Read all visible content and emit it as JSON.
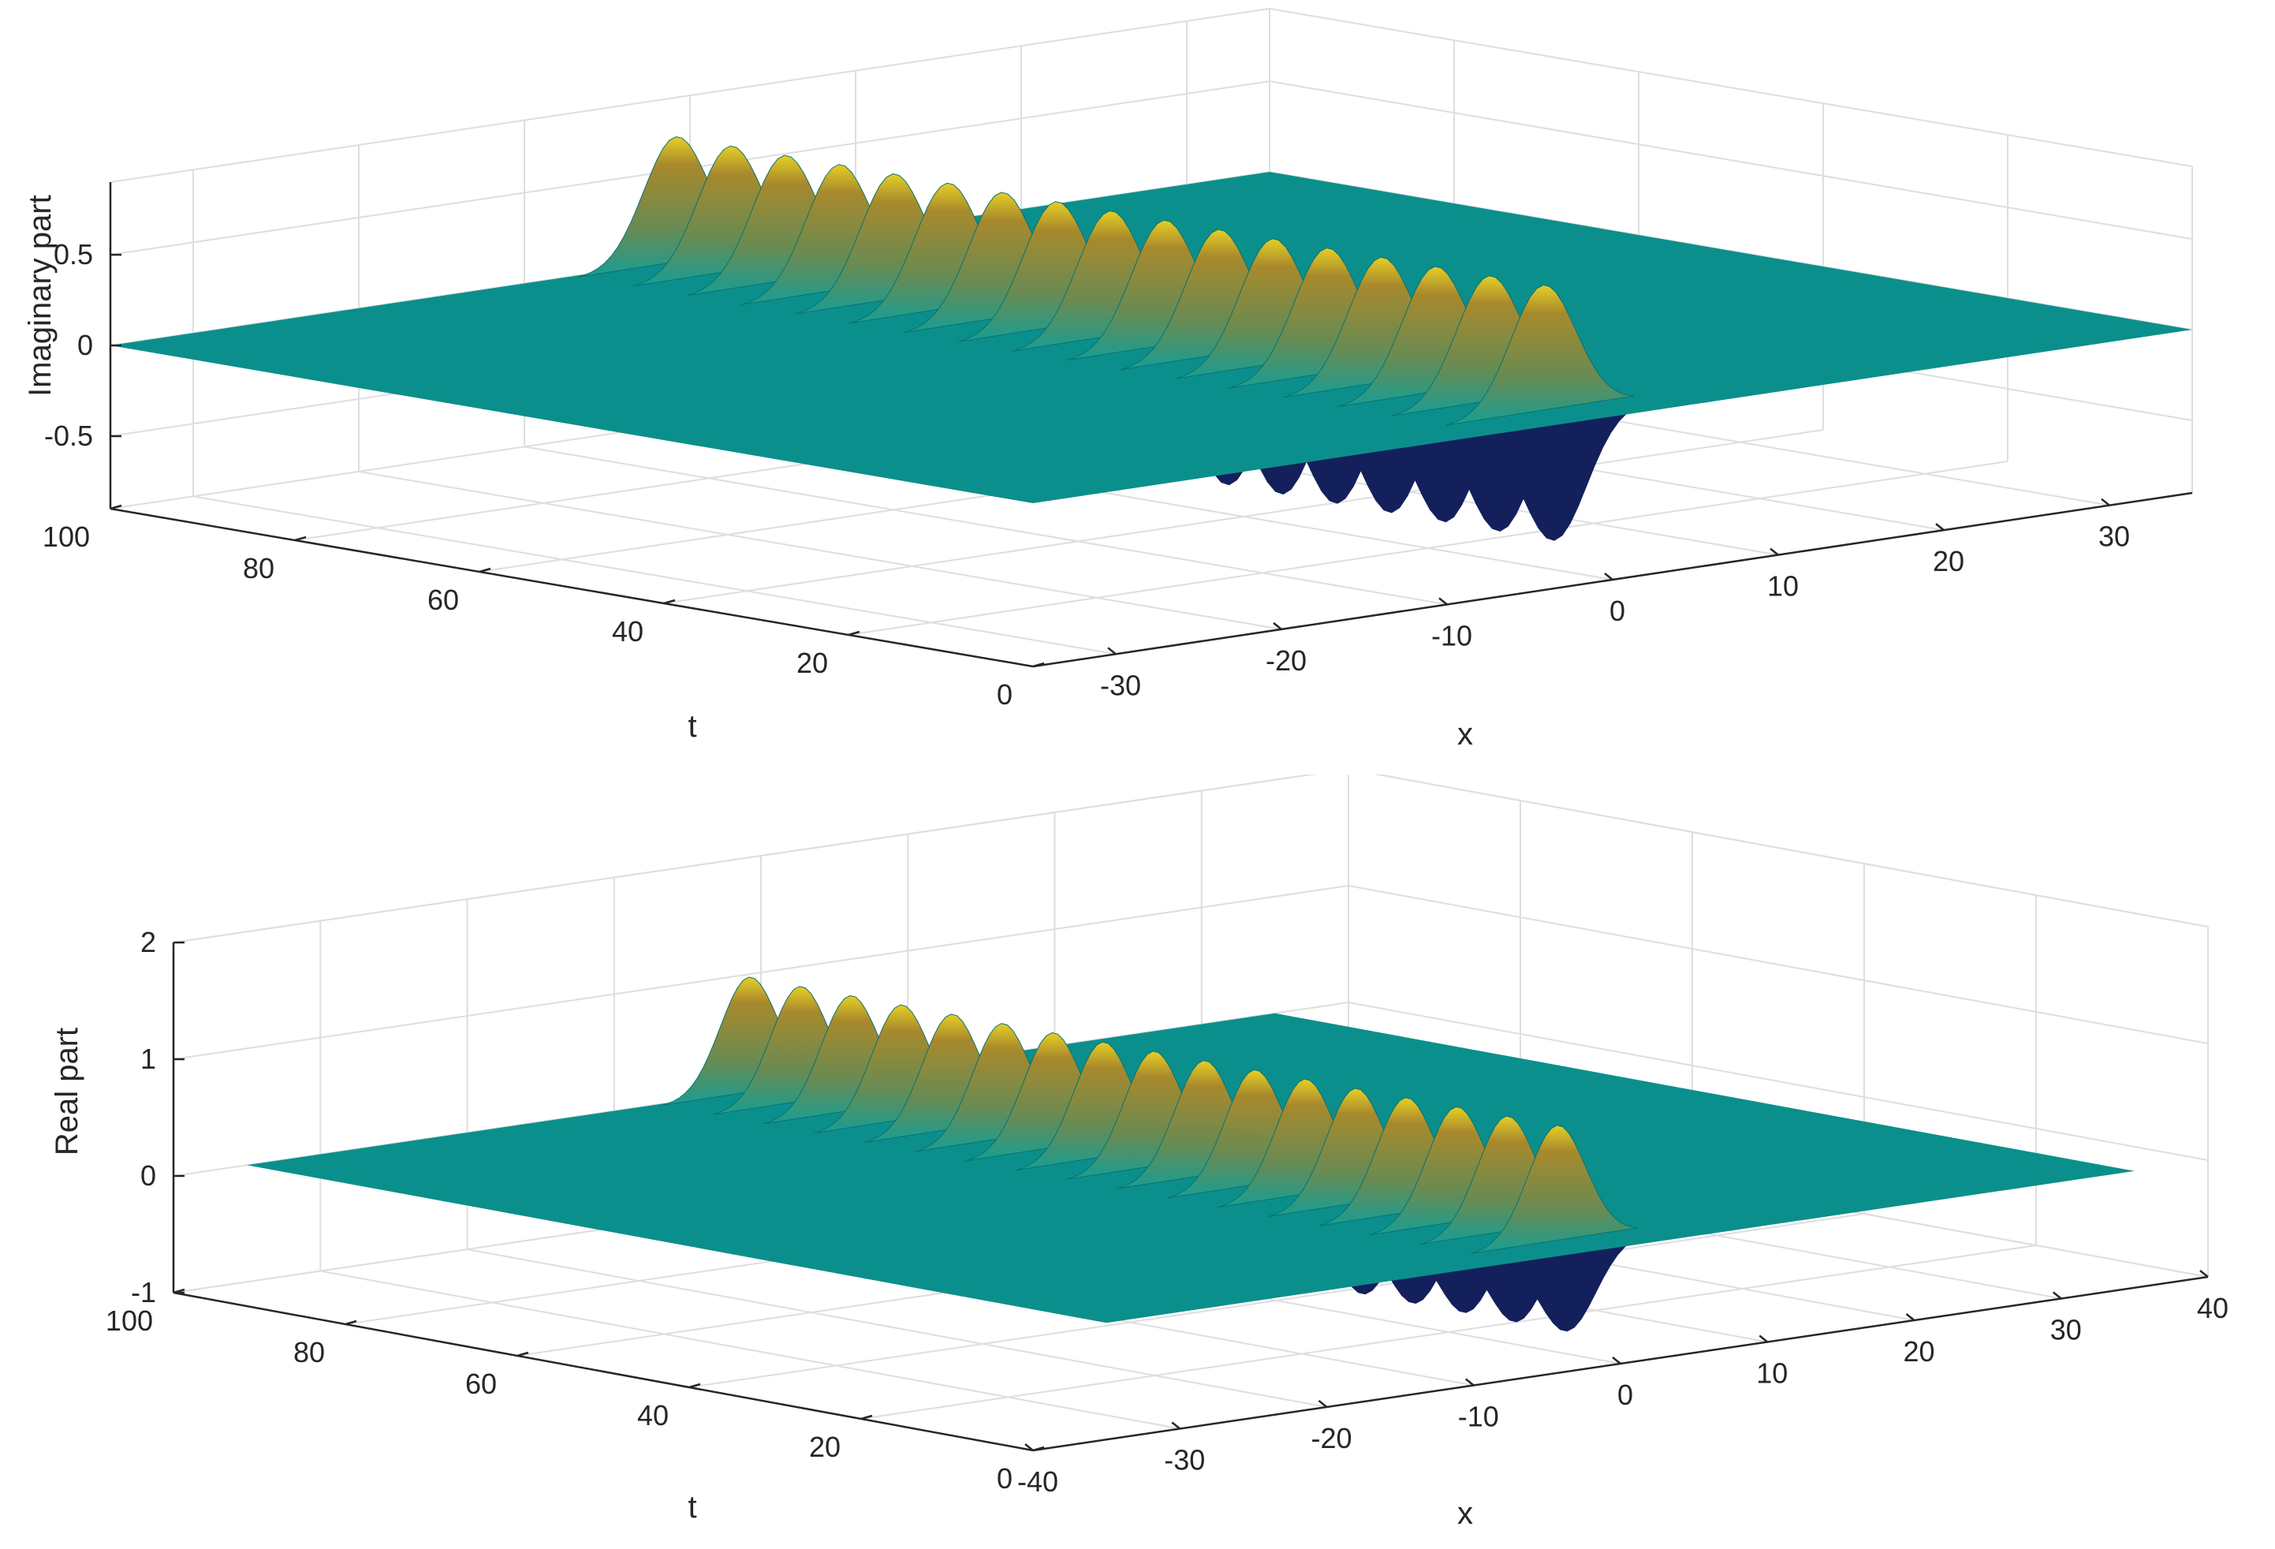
{
  "chart_data": [
    {
      "type": "surface",
      "zlabel": "Imaginary part",
      "xlabel": "x",
      "ylabel": "t",
      "x_ticks": [
        -30,
        -20,
        -10,
        0,
        10,
        20,
        30
      ],
      "t_ticks": [
        0,
        20,
        40,
        60,
        80,
        100
      ],
      "z_ticks": [
        -0.5,
        0,
        0.5
      ],
      "x_range": [
        -35,
        35
      ],
      "t_range": [
        0,
        100
      ],
      "z_range": [
        -0.9,
        0.9
      ],
      "grid": true,
      "peak_count": 17,
      "peak_amplitude": 0.7,
      "trough_amplitude": -0.7,
      "colors": {
        "floor": "#0b8f8c",
        "peak": "#e6cf26",
        "mid": "#a8892c",
        "trough": "#13205c"
      }
    },
    {
      "type": "surface",
      "zlabel": "Real part",
      "xlabel": "x",
      "ylabel": "t",
      "x_ticks": [
        -40,
        -30,
        -20,
        -10,
        0,
        10,
        20,
        30,
        40
      ],
      "t_ticks": [
        0,
        20,
        40,
        60,
        80,
        100
      ],
      "z_ticks": [
        -1,
        0,
        1,
        2
      ],
      "x_range": [
        -40,
        40
      ],
      "t_range": [
        0,
        100
      ],
      "z_range": [
        -1,
        2
      ],
      "grid": true,
      "peak_count": 17,
      "peak_amplitude": 1.0,
      "trough_amplitude": -0.75,
      "colors": {
        "floor": "#0b8f8c",
        "peak": "#e6cf26",
        "mid": "#a8892c",
        "trough": "#13205c"
      }
    }
  ]
}
